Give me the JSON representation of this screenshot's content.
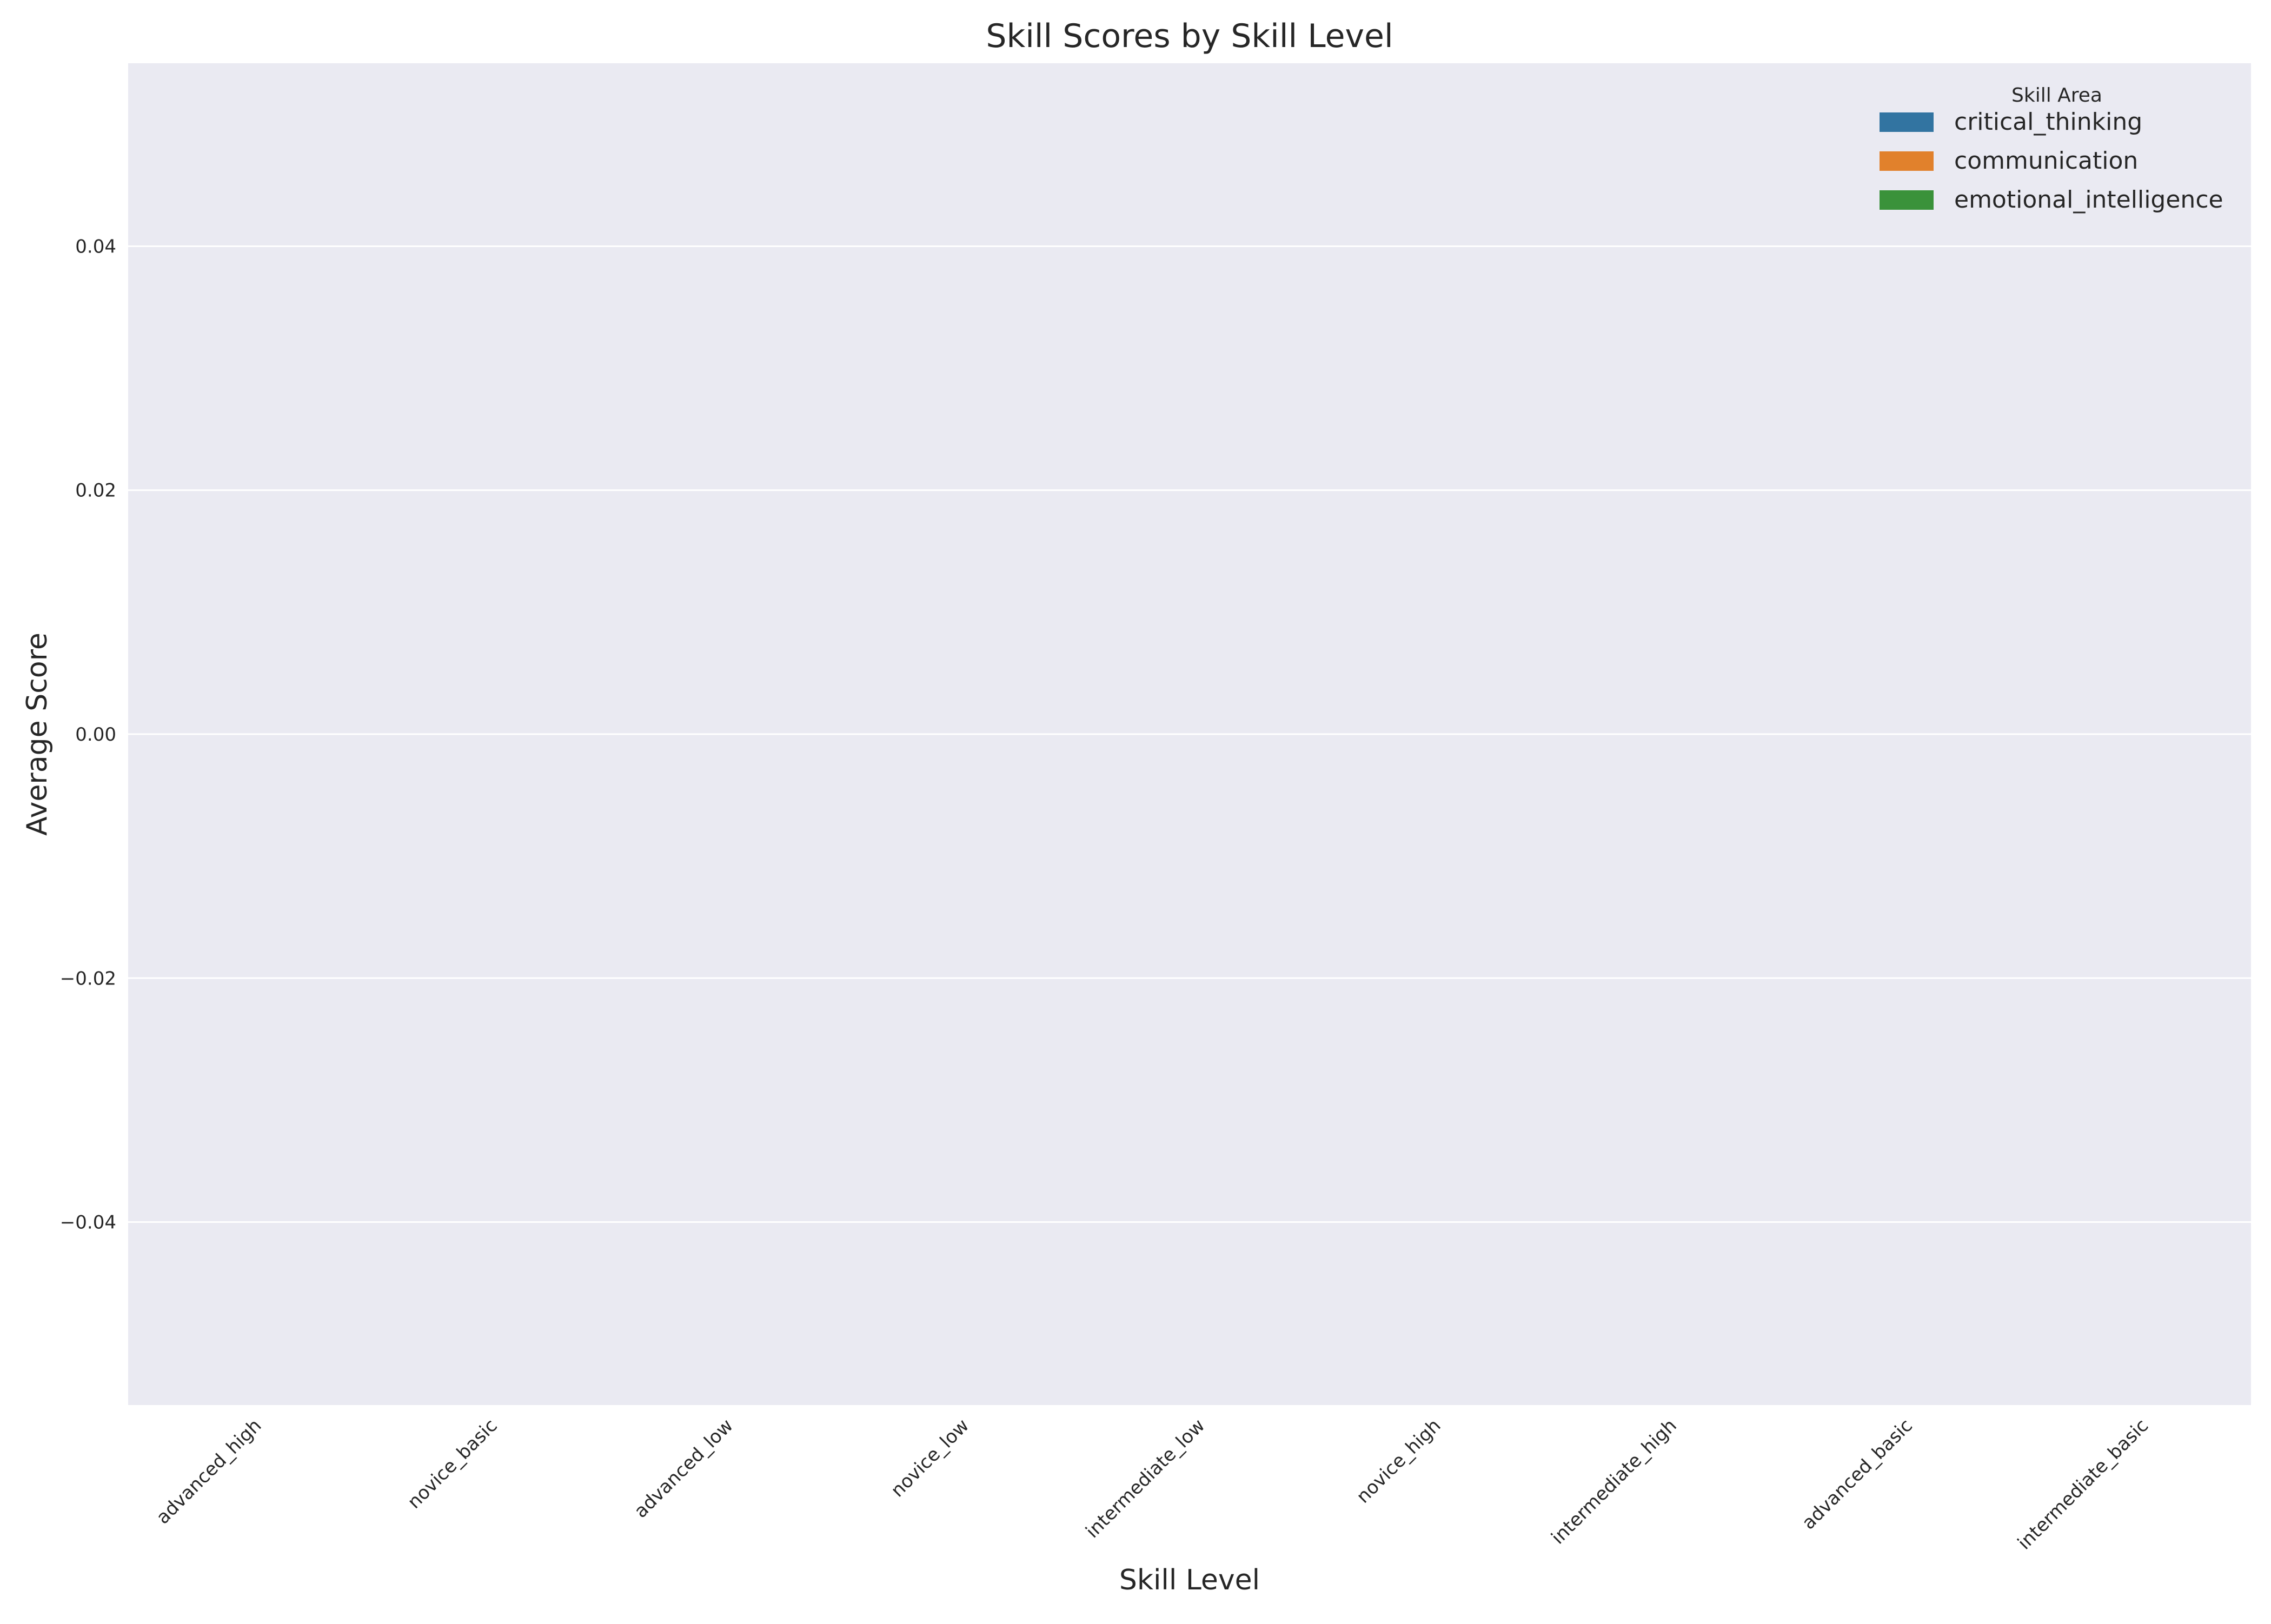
{
  "chart_data": {
    "type": "bar",
    "title": "Skill Scores by Skill Level",
    "xlabel": "Skill Level",
    "ylabel": "Average Score",
    "categories": [
      "advanced_high",
      "novice_basic",
      "advanced_low",
      "novice_low",
      "intermediate_low",
      "novice_high",
      "intermediate_high",
      "advanced_basic",
      "intermediate_basic"
    ],
    "series": [
      {
        "name": "critical_thinking",
        "color": "#3274a1",
        "values": [
          null,
          null,
          null,
          null,
          null,
          null,
          null,
          null,
          null
        ]
      },
      {
        "name": "communication",
        "color": "#e1812c",
        "values": [
          null,
          null,
          null,
          null,
          null,
          null,
          null,
          null,
          null
        ]
      },
      {
        "name": "emotional_intelligence",
        "color": "#3a923a",
        "values": [
          null,
          null,
          null,
          null,
          null,
          null,
          null,
          null,
          null
        ]
      }
    ],
    "ylim": [
      -0.055,
      0.055
    ],
    "yticks": [
      0.04,
      0.02,
      0.0,
      -0.02,
      -0.04
    ],
    "ytick_labels": [
      "0.04",
      "0.02",
      "0.00",
      "−0.02",
      "−0.04"
    ],
    "legend": {
      "title": "Skill Area",
      "placement": "top-right"
    },
    "grid": true,
    "background_color": "#eaeaf2"
  }
}
